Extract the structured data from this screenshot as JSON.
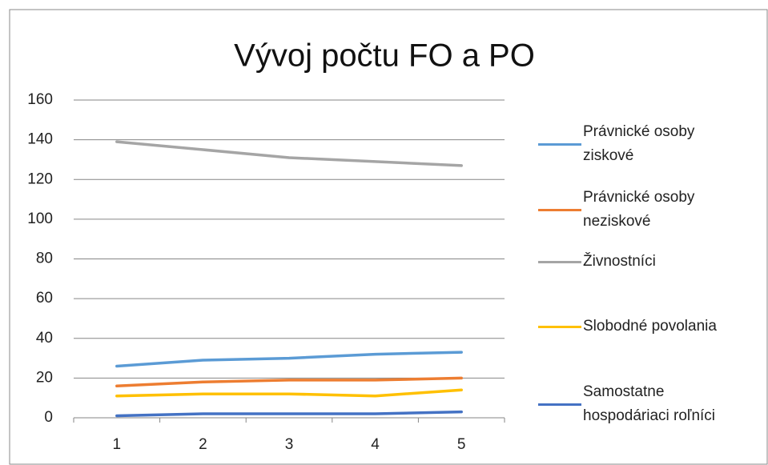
{
  "chart_data": {
    "type": "line",
    "title": "Vývoj počtu FO a PO",
    "categories": [
      1,
      2,
      3,
      4,
      5
    ],
    "series": [
      {
        "name": "Právnické osoby ziskové",
        "color": "#5b9bd5",
        "values": [
          26,
          29,
          30,
          32,
          33
        ]
      },
      {
        "name": "Právnické osoby neziskové",
        "color": "#ed7d31",
        "values": [
          16,
          18,
          19,
          19,
          20
        ]
      },
      {
        "name": "Živnostníci",
        "color": "#a5a5a5",
        "values": [
          139,
          135,
          131,
          129,
          127
        ]
      },
      {
        "name": "Slobodné povolania",
        "color": "#ffc000",
        "values": [
          11,
          12,
          12,
          11,
          14
        ]
      },
      {
        "name": "Samostatne hospodáriaci roľníci",
        "color": "#4472c4",
        "values": [
          1,
          2,
          2,
          2,
          3
        ]
      }
    ],
    "ylim": [
      0,
      160
    ],
    "yticks": [
      0,
      20,
      40,
      60,
      80,
      100,
      120,
      140,
      160
    ],
    "grid": true,
    "legend": "right"
  }
}
